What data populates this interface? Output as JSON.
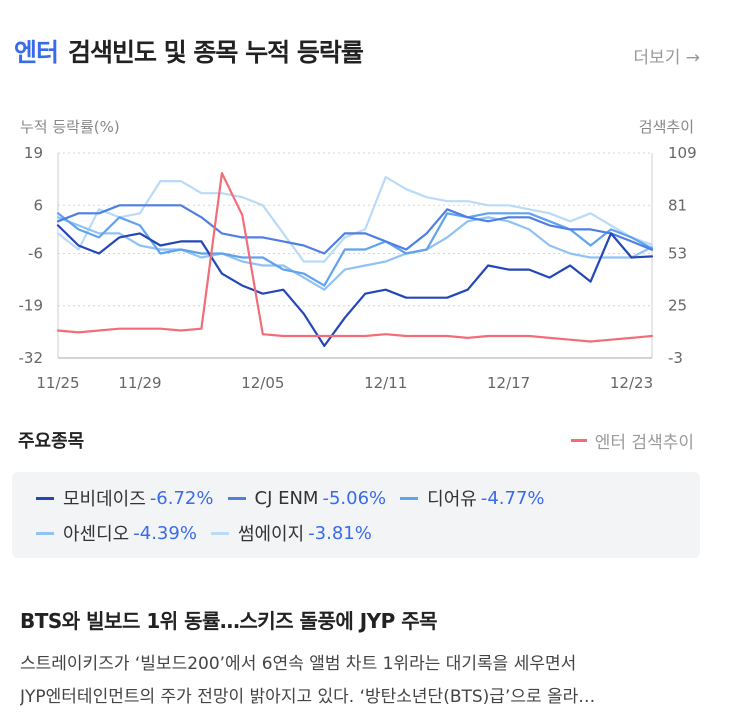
{
  "header": {
    "accent": "엔터",
    "title": "검색빈도 및 종목 누적 등락률",
    "more": "더보기 →"
  },
  "left_axis_name": "누적 등락률(%)",
  "right_axis_name": "검색추이",
  "section_title": "주요종목",
  "search_legend_label": "엔터 검색추이",
  "stocks": [
    {
      "name": "모비데이즈",
      "change": "-6.72%",
      "color": "#2447b8"
    },
    {
      "name": "CJ ENM",
      "change": "-5.06%",
      "color": "#4f7fe3"
    },
    {
      "name": "디어유",
      "change": "-4.77%",
      "color": "#5fa2ee"
    },
    {
      "name": "아센디오",
      "change": "-4.39%",
      "color": "#90c2f4"
    },
    {
      "name": "썸에이지",
      "change": "-3.81%",
      "color": "#b9dbf8"
    }
  ],
  "news": {
    "title": "BTS와 빌보드 1위 동률…스키즈 돌풍에 JYP 주목",
    "line1": "스트레이키즈가 ‘빌보드200’에서 6연속 앨범 차트 1위라는 대기록을 세우면서",
    "line2": "JYP엔터테인먼트의 주가 전망이 밝아지고 있다. ‘방탄소년단(BTS)급’으로 올라…"
  },
  "chart_data": {
    "type": "line",
    "x": [
      "11/25",
      "11/26",
      "11/27",
      "11/28",
      "11/29",
      "11/30",
      "12/01",
      "12/02",
      "12/03",
      "12/04",
      "12/05",
      "12/06",
      "12/07",
      "12/08",
      "12/09",
      "12/10",
      "12/11",
      "12/12",
      "12/13",
      "12/14",
      "12/15",
      "12/16",
      "12/17",
      "12/18",
      "12/19",
      "12/20",
      "12/21",
      "12/22",
      "12/23",
      "12/24"
    ],
    "x_tick_labels": [
      "11/25",
      "11/29",
      "12/05",
      "12/11",
      "12/17",
      "12/23"
    ],
    "left_axis": {
      "ticks": [
        19,
        6,
        -6,
        -19,
        -32
      ],
      "ylim": [
        -32,
        19
      ]
    },
    "right_axis": {
      "ticks": [
        109,
        81,
        53,
        25,
        -3
      ],
      "ylim": [
        -3,
        109
      ]
    },
    "series": [
      {
        "name": "모비데이즈",
        "axis": "left",
        "color": "#2447b8",
        "values": [
          1,
          -4,
          -6,
          -2,
          -1,
          -4,
          -3,
          -3,
          -11,
          -14,
          -16,
          -15,
          -21,
          -29,
          -22,
          -16,
          -15,
          -17,
          -17,
          -17,
          -15,
          -9,
          -10,
          -10,
          -12,
          -9,
          -13,
          -1,
          -7,
          -6.72
        ]
      },
      {
        "name": "CJ ENM",
        "axis": "left",
        "color": "#4f7fe3",
        "values": [
          2,
          4,
          4,
          6,
          6,
          6,
          6,
          3,
          -1,
          -2,
          -2,
          -3,
          -4,
          -6,
          -1,
          -1,
          -3,
          -5,
          -1,
          5,
          3,
          2,
          3,
          3,
          1,
          0,
          0,
          -1,
          -3,
          -5.06
        ]
      },
      {
        "name": "디어유",
        "axis": "left",
        "color": "#5fa2ee",
        "values": [
          4,
          0,
          -2,
          3,
          1,
          -6,
          -5,
          -6,
          -6,
          -7,
          -7,
          -10,
          -11,
          -14,
          -5,
          -5,
          -3,
          -6,
          -5,
          4,
          3,
          4,
          4,
          4,
          2,
          0,
          -4,
          0,
          -2,
          -4.77
        ]
      },
      {
        "name": "아센디오",
        "axis": "left",
        "color": "#90c2f4",
        "values": [
          3,
          1,
          -1,
          -1,
          -4,
          -5,
          -5,
          -7,
          -6,
          -8,
          -9,
          -9,
          -12,
          -15,
          -10,
          -9,
          -8,
          -6,
          -5,
          -2,
          2,
          3,
          2,
          0,
          -4,
          -6,
          -7,
          -7,
          -7,
          -4.39
        ]
      },
      {
        "name": "썸에이지",
        "axis": "left",
        "color": "#b9dbf8",
        "values": [
          -1,
          -5,
          5,
          3,
          4,
          12,
          12,
          9,
          9,
          8,
          6,
          -1,
          -8,
          -8,
          -2,
          0,
          13,
          10,
          8,
          7,
          7,
          6,
          6,
          5,
          4,
          2,
          4,
          1,
          -2,
          -3.81
        ]
      },
      {
        "name": "엔터 검색추이",
        "axis": "right",
        "color": "#f26d78",
        "values": [
          12,
          11,
          12,
          13,
          13,
          13,
          12,
          13,
          98,
          75,
          10,
          9,
          9,
          9,
          9,
          9,
          10,
          9,
          9,
          9,
          8,
          9,
          9,
          9,
          8,
          7,
          6,
          7,
          8,
          9
        ]
      }
    ]
  }
}
